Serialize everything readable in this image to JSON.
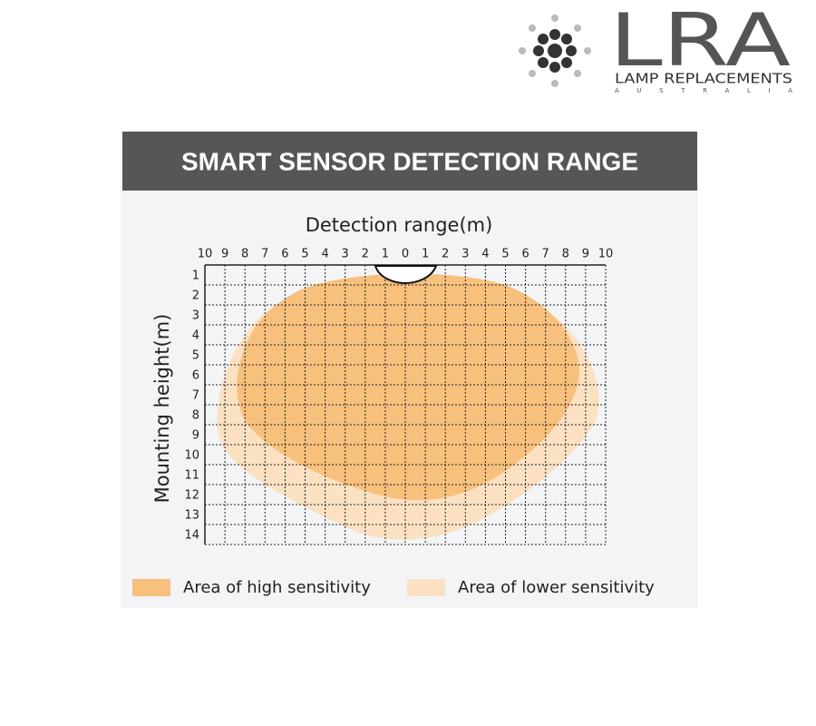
{
  "logo": {
    "name": "LRA",
    "tagline": "LAMP REPLACEMENTS",
    "country": "A U S T R A L I A"
  },
  "header": {
    "title": "SMART SENSOR DETECTION RANGE"
  },
  "diagram": {
    "x_axis_label": "Detection range(m)",
    "x_ticks": [
      "10",
      "9",
      "8",
      "7",
      "6",
      "5",
      "4",
      "3",
      "2",
      "1",
      "0",
      "1",
      "2",
      "3",
      "4",
      "5",
      "6",
      "7",
      "8",
      "9",
      "10"
    ],
    "y_axis_label": "Mounting height(m)",
    "y_ticks": [
      "1",
      "2",
      "3",
      "4",
      "5",
      "6",
      "7",
      "8",
      "9",
      "10",
      "11",
      "12",
      "13",
      "14"
    ]
  },
  "legend": [
    {
      "label": "Area of high sensitivity",
      "color": "#f7c07c"
    },
    {
      "label": "Area of lower sensitivity",
      "color": "#fbe1c2"
    }
  ]
}
